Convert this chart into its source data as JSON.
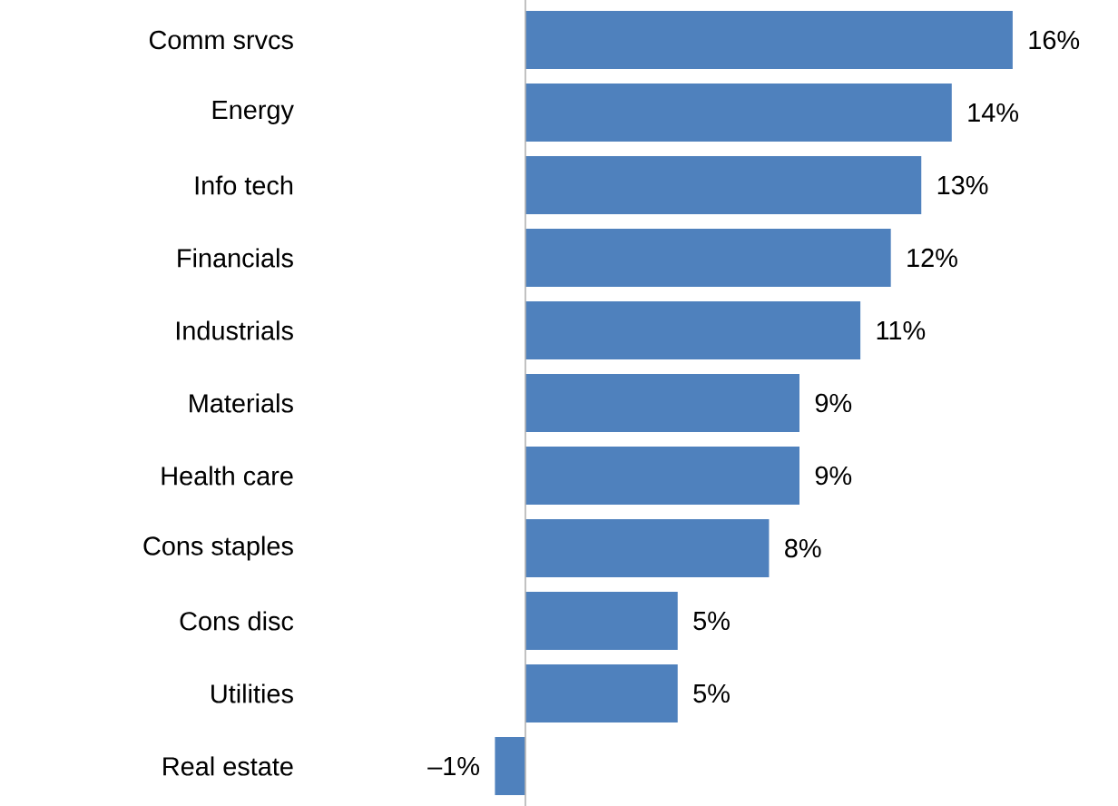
{
  "chart_data": {
    "type": "bar",
    "orientation": "horizontal",
    "color": "#4f81bd",
    "categories": [
      "Comm srvcs",
      "Energy",
      "Info tech",
      "Financials",
      "Industrials",
      "Materials",
      "Health care",
      "Cons staples",
      "Cons disc",
      "Utilities",
      "Real estate"
    ],
    "values": [
      16,
      14,
      13,
      12,
      11,
      9,
      9,
      8,
      5,
      5,
      -1
    ],
    "value_labels": [
      "16%",
      "14%",
      "13%",
      "12%",
      "11%",
      "9%",
      "9%",
      "8%",
      "5%",
      "5%",
      "–1%"
    ]
  }
}
